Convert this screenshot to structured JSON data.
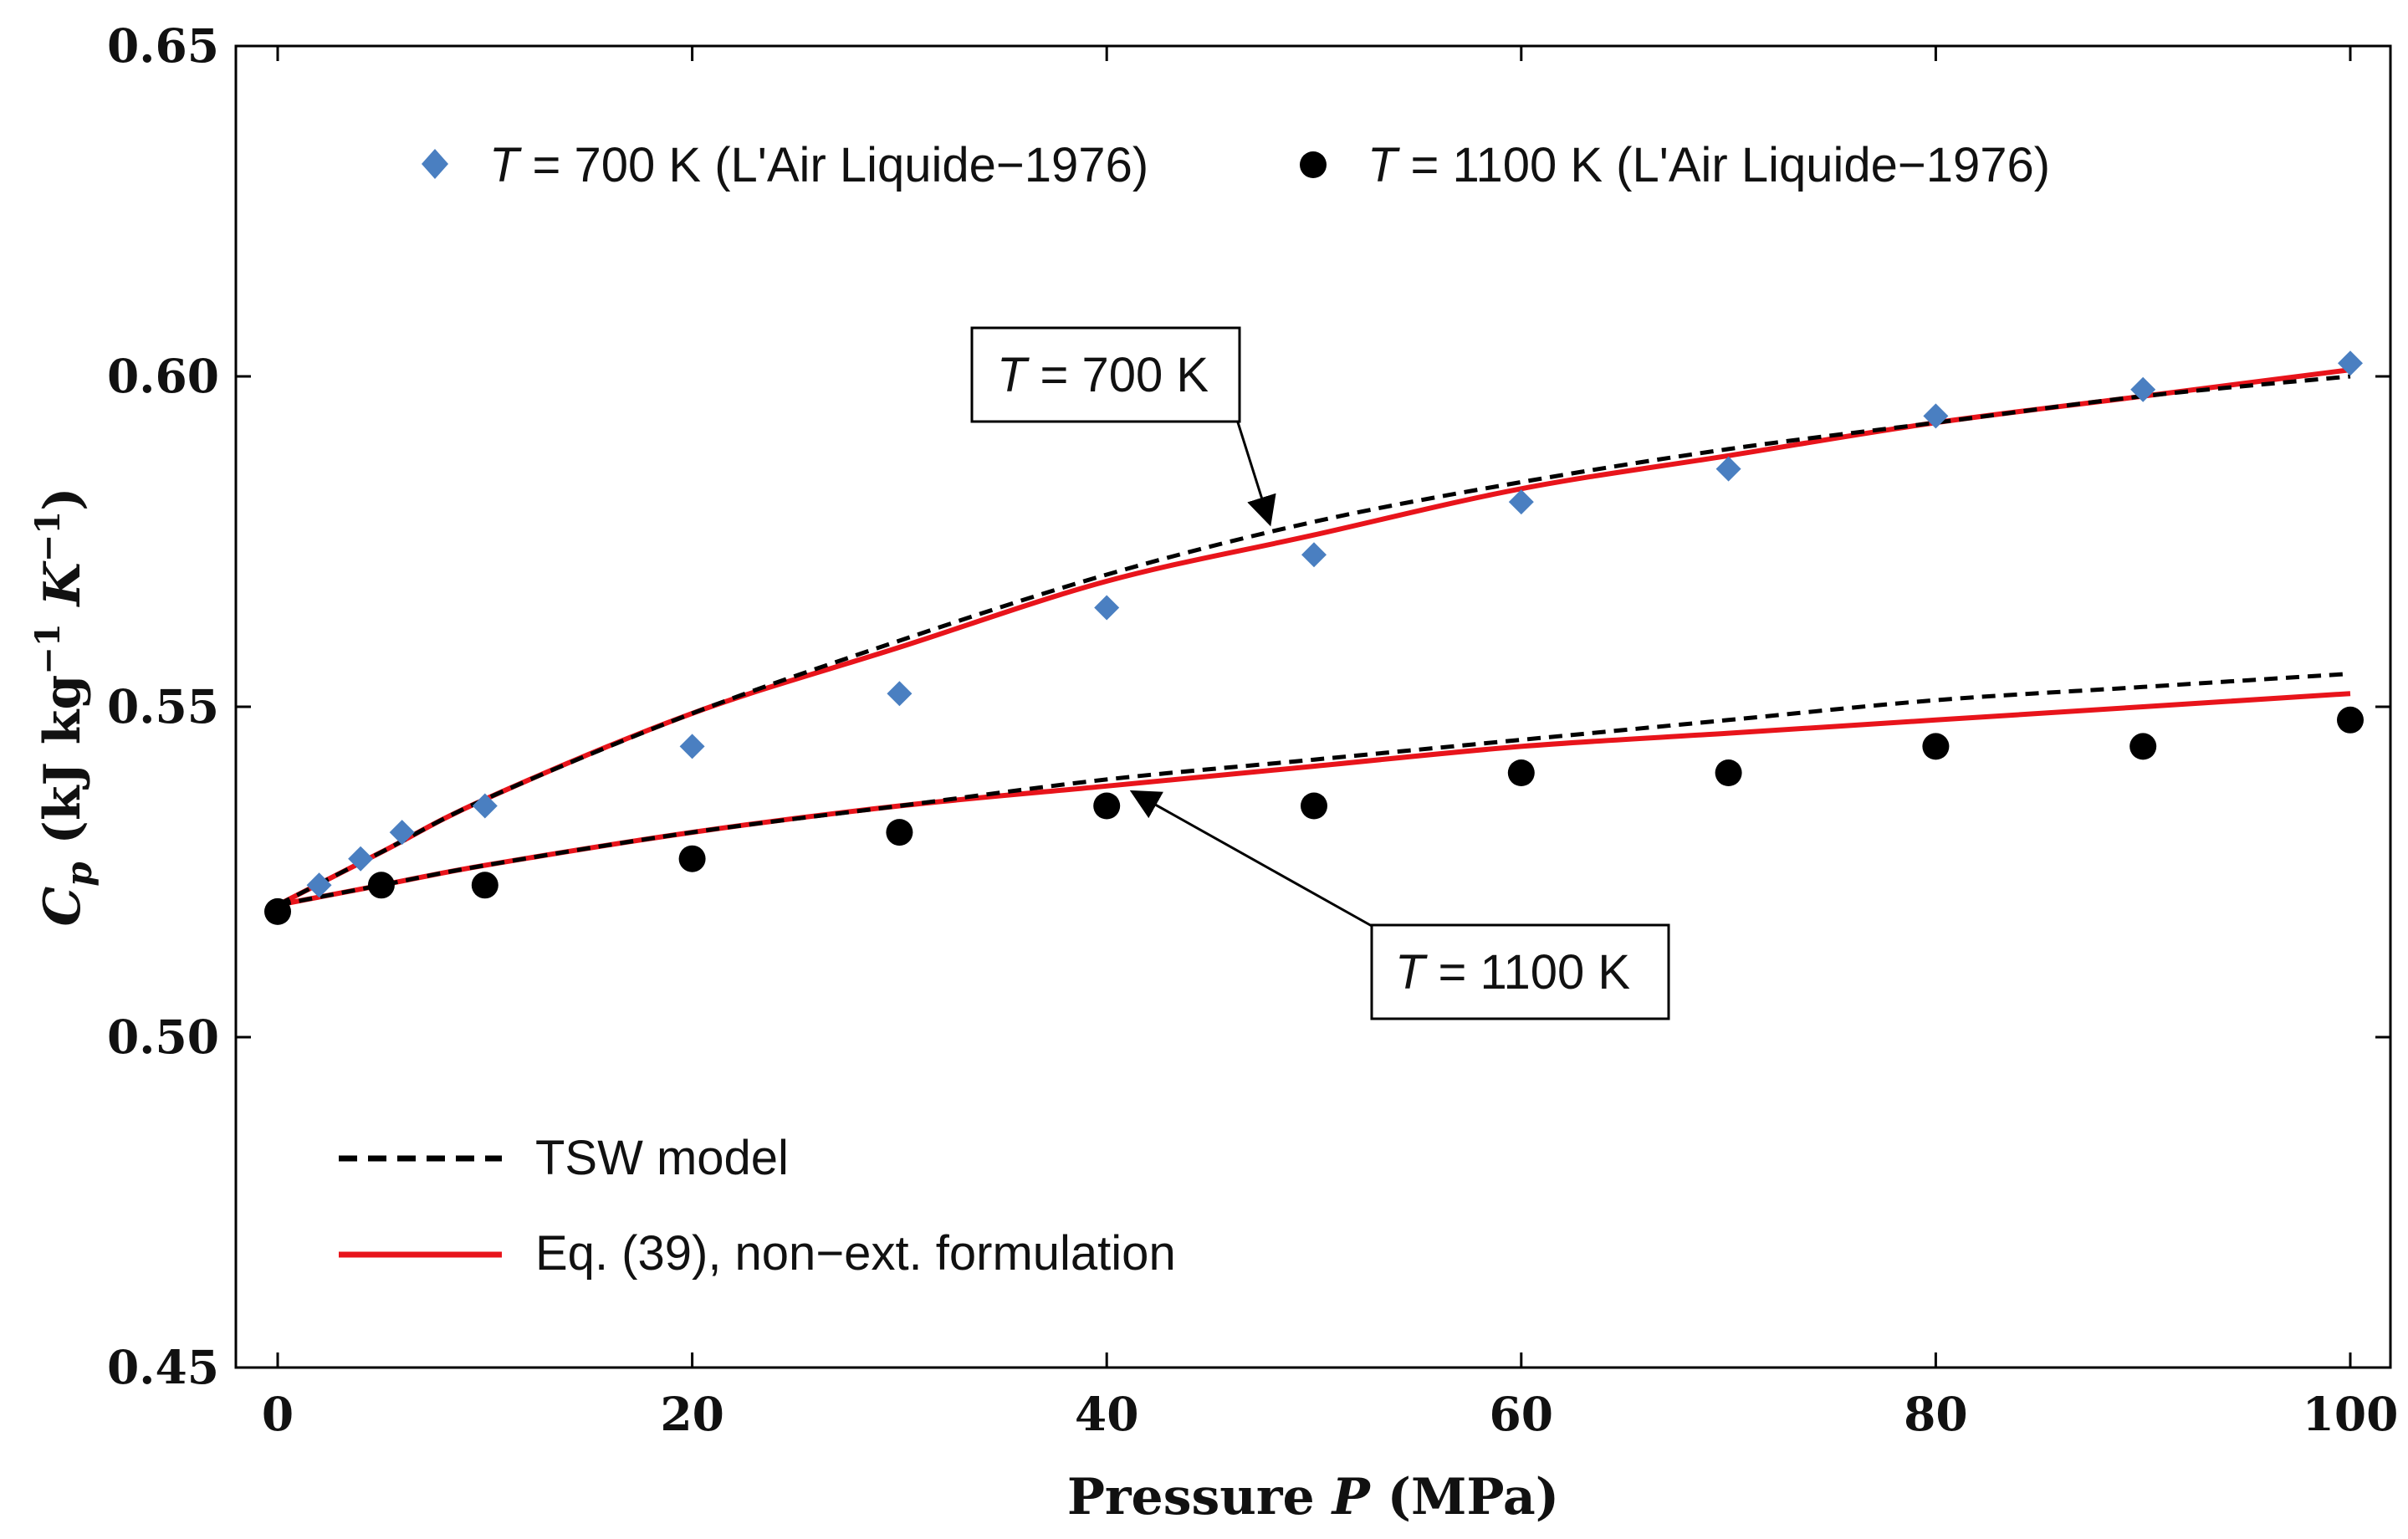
{
  "chart_data": {
    "type": "scatter",
    "xlabel_prefix": "Pressure ",
    "xlabel_var": "P",
    "xlabel_unit": " (MPa)",
    "ylabel_var": "C",
    "ylabel_sub": "p",
    "ylabel_unit_a": " (kJ kg",
    "ylabel_exp_a": "−1",
    "ylabel_unit_b": " K",
    "ylabel_exp_b": "−1",
    "ylabel_close": ")",
    "xlim": [
      0,
      100
    ],
    "ylim": [
      0.45,
      0.65
    ],
    "x_ticks": [
      0,
      20,
      40,
      60,
      80,
      100
    ],
    "x_tick_labels": [
      "0",
      "20",
      "40",
      "60",
      "80",
      "100"
    ],
    "y_ticks": [
      0.45,
      0.5,
      0.55,
      0.6,
      0.65
    ],
    "y_tick_labels": [
      "0.45",
      "0.50",
      "0.55",
      "0.60",
      "0.65"
    ],
    "colors": {
      "diamond": "#4a7fc1",
      "circle": "#000000",
      "tsw": "#000000",
      "eq39": "#e8141b"
    },
    "series": [
      {
        "name": "T = 700 K (L'Air Liquide−1976)",
        "legend_var": "T",
        "legend_rest": " = 700 K (L'Air Liquide−1976)",
        "marker": "diamond",
        "x": [
          0,
          2,
          4,
          6,
          10,
          20,
          30,
          40,
          50,
          60,
          70,
          80,
          90,
          100
        ],
        "y": [
          0.519,
          0.523,
          0.527,
          0.531,
          0.535,
          0.544,
          0.552,
          0.565,
          0.573,
          0.581,
          0.586,
          0.594,
          0.598,
          0.602
        ]
      },
      {
        "name": "T = 1100 K (L'Air Liquide−1976)",
        "legend_var": "T",
        "legend_rest": " = 1100 K (L'Air Liquide−1976)",
        "marker": "circle",
        "x": [
          0,
          5,
          10,
          20,
          30,
          40,
          50,
          60,
          70,
          80,
          90,
          100
        ],
        "y": [
          0.519,
          0.523,
          0.523,
          0.527,
          0.531,
          0.535,
          0.535,
          0.54,
          0.54,
          0.544,
          0.544,
          0.548
        ]
      },
      {
        "name": "TSW model, T = 700 K",
        "style": "dashed",
        "x": [
          0,
          5,
          10,
          20,
          30,
          40,
          50,
          60,
          70,
          80,
          90,
          100
        ],
        "y": [
          0.52,
          0.528,
          0.536,
          0.549,
          0.56,
          0.57,
          0.578,
          0.584,
          0.589,
          0.593,
          0.597,
          0.6
        ]
      },
      {
        "name": "TSW model, T = 1100 K",
        "style": "dashed",
        "x": [
          0,
          5,
          10,
          20,
          30,
          40,
          50,
          60,
          70,
          80,
          90,
          100
        ],
        "y": [
          0.52,
          0.523,
          0.526,
          0.531,
          0.535,
          0.539,
          0.542,
          0.545,
          0.548,
          0.551,
          0.553,
          0.555
        ]
      },
      {
        "name": "Eq. (39), non−ext. formulation, T = 700 K",
        "style": "solid",
        "x": [
          0,
          5,
          10,
          20,
          30,
          40,
          50,
          60,
          70,
          80,
          90,
          100
        ],
        "y": [
          0.52,
          0.528,
          0.536,
          0.549,
          0.559,
          0.569,
          0.576,
          0.583,
          0.588,
          0.593,
          0.597,
          0.601
        ]
      },
      {
        "name": "Eq. (39), non−ext. formulation, T = 1100 K",
        "style": "solid",
        "x": [
          0,
          5,
          10,
          20,
          30,
          40,
          50,
          60,
          70,
          80,
          90,
          100
        ],
        "y": [
          0.52,
          0.523,
          0.526,
          0.531,
          0.535,
          0.538,
          0.541,
          0.544,
          0.546,
          0.548,
          0.55,
          0.552
        ]
      }
    ],
    "legend_models": [
      {
        "label": "TSW model",
        "style": "dashed"
      },
      {
        "label": "Eq. (39), non−ext. formulation",
        "style": "solid"
      }
    ],
    "annotations": [
      {
        "var": "T",
        "rest": " = 700 K",
        "points_to_x": 48,
        "points_to_y": 0.577
      },
      {
        "var": "T",
        "rest": " = 1100 K",
        "points_to_x": 41,
        "points_to_y": 0.538
      }
    ]
  }
}
